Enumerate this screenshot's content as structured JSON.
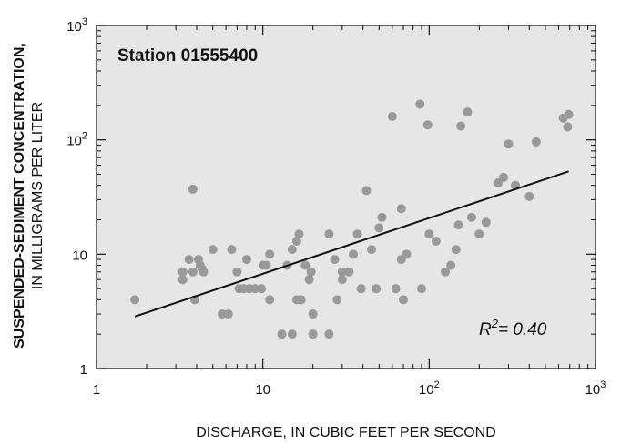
{
  "chart_data": {
    "type": "scatter",
    "title": "Station 01555400",
    "xlabel": "DISCHARGE, IN CUBIC FEET PER SECOND",
    "ylabel_line1": "SUSPENDED-SEDIMENT CONCENTRATION,",
    "ylabel_line2": "IN MILLIGRAMS PER LITER",
    "x_scale": "log",
    "y_scale": "log",
    "xlim": [
      1,
      1000
    ],
    "ylim": [
      1,
      1000
    ],
    "x_ticks": [
      {
        "value": 1,
        "base": "1",
        "exp": ""
      },
      {
        "value": 10,
        "base": "10",
        "exp": ""
      },
      {
        "value": 100,
        "base": "10",
        "exp": "2"
      },
      {
        "value": 1000,
        "base": "10",
        "exp": "3"
      }
    ],
    "y_ticks": [
      {
        "value": 1,
        "base": "1",
        "exp": ""
      },
      {
        "value": 10,
        "base": "10",
        "exp": ""
      },
      {
        "value": 100,
        "base": "10",
        "exp": "2"
      },
      {
        "value": 1000,
        "base": "10",
        "exp": "3"
      }
    ],
    "grid": false,
    "plot_background": "#e6e6e6",
    "point_color": "#999999",
    "line_color": "#111111",
    "annotation": {
      "prefix": "R",
      "sup": "2",
      "suffix": "= 0.40"
    },
    "regression_line": {
      "x": [
        1.7,
        690
      ],
      "y": [
        2.85,
        53
      ]
    },
    "points": [
      {
        "x": 1.7,
        "y": 4.0
      },
      {
        "x": 3.3,
        "y": 7.0
      },
      {
        "x": 3.3,
        "y": 6.0
      },
      {
        "x": 3.6,
        "y": 9.0
      },
      {
        "x": 3.8,
        "y": 37
      },
      {
        "x": 3.8,
        "y": 7.0
      },
      {
        "x": 3.9,
        "y": 4.0
      },
      {
        "x": 4.1,
        "y": 9.0
      },
      {
        "x": 4.2,
        "y": 8.0
      },
      {
        "x": 4.3,
        "y": 7.5
      },
      {
        "x": 4.4,
        "y": 7.0
      },
      {
        "x": 5.0,
        "y": 11.0
      },
      {
        "x": 5.7,
        "y": 3.0
      },
      {
        "x": 6.2,
        "y": 3.0
      },
      {
        "x": 6.5,
        "y": 11.0
      },
      {
        "x": 7.0,
        "y": 7.0
      },
      {
        "x": 7.2,
        "y": 5.0
      },
      {
        "x": 7.7,
        "y": 5.0
      },
      {
        "x": 8.0,
        "y": 9.0
      },
      {
        "x": 8.3,
        "y": 5.0
      },
      {
        "x": 9.0,
        "y": 5.0
      },
      {
        "x": 9.8,
        "y": 5.0
      },
      {
        "x": 10.0,
        "y": 8.0
      },
      {
        "x": 10.5,
        "y": 8.0
      },
      {
        "x": 11.0,
        "y": 10.0
      },
      {
        "x": 11.0,
        "y": 4.0
      },
      {
        "x": 13.0,
        "y": 2.0
      },
      {
        "x": 14.0,
        "y": 8.0
      },
      {
        "x": 15.0,
        "y": 11.0
      },
      {
        "x": 15.0,
        "y": 2.0
      },
      {
        "x": 16.0,
        "y": 4.0
      },
      {
        "x": 16.0,
        "y": 13.0
      },
      {
        "x": 16.5,
        "y": 15.0
      },
      {
        "x": 17.0,
        "y": 4.0
      },
      {
        "x": 18.0,
        "y": 8.0
      },
      {
        "x": 19.0,
        "y": 6.0
      },
      {
        "x": 19.5,
        "y": 7.0
      },
      {
        "x": 20.0,
        "y": 3.0
      },
      {
        "x": 20.0,
        "y": 2.0
      },
      {
        "x": 25.0,
        "y": 15.0
      },
      {
        "x": 25.0,
        "y": 2.0
      },
      {
        "x": 27.0,
        "y": 9.0
      },
      {
        "x": 28.0,
        "y": 4.0
      },
      {
        "x": 30.0,
        "y": 7.0
      },
      {
        "x": 30.0,
        "y": 6.0
      },
      {
        "x": 33.0,
        "y": 7.0
      },
      {
        "x": 35.0,
        "y": 10.0
      },
      {
        "x": 37.0,
        "y": 15.0
      },
      {
        "x": 39.0,
        "y": 5.0
      },
      {
        "x": 42.0,
        "y": 36.0
      },
      {
        "x": 45.0,
        "y": 11.0
      },
      {
        "x": 48.0,
        "y": 5.0
      },
      {
        "x": 50.0,
        "y": 17.0
      },
      {
        "x": 52.0,
        "y": 21.0
      },
      {
        "x": 60.0,
        "y": 160.0
      },
      {
        "x": 63.0,
        "y": 5.0
      },
      {
        "x": 68.0,
        "y": 9.0
      },
      {
        "x": 68.0,
        "y": 25.0
      },
      {
        "x": 70.0,
        "y": 4.0
      },
      {
        "x": 73.0,
        "y": 10.0
      },
      {
        "x": 88.0,
        "y": 205.0
      },
      {
        "x": 90.0,
        "y": 5.0
      },
      {
        "x": 98.0,
        "y": 135.0
      },
      {
        "x": 100.0,
        "y": 15.0
      },
      {
        "x": 110.0,
        "y": 13.0
      },
      {
        "x": 125.0,
        "y": 7.0
      },
      {
        "x": 135.0,
        "y": 8.0
      },
      {
        "x": 145.0,
        "y": 11.0
      },
      {
        "x": 150.0,
        "y": 18.0
      },
      {
        "x": 155.0,
        "y": 132.0
      },
      {
        "x": 170.0,
        "y": 175.0
      },
      {
        "x": 180.0,
        "y": 21.0
      },
      {
        "x": 200.0,
        "y": 15.0
      },
      {
        "x": 220.0,
        "y": 19.0
      },
      {
        "x": 260.0,
        "y": 42.0
      },
      {
        "x": 280.0,
        "y": 47.0
      },
      {
        "x": 300.0,
        "y": 92.0
      },
      {
        "x": 330.0,
        "y": 40.0
      },
      {
        "x": 400.0,
        "y": 32.0
      },
      {
        "x": 440.0,
        "y": 96.0
      },
      {
        "x": 640.0,
        "y": 155.0
      },
      {
        "x": 680.0,
        "y": 130.0
      },
      {
        "x": 690.0,
        "y": 167.0
      }
    ]
  }
}
